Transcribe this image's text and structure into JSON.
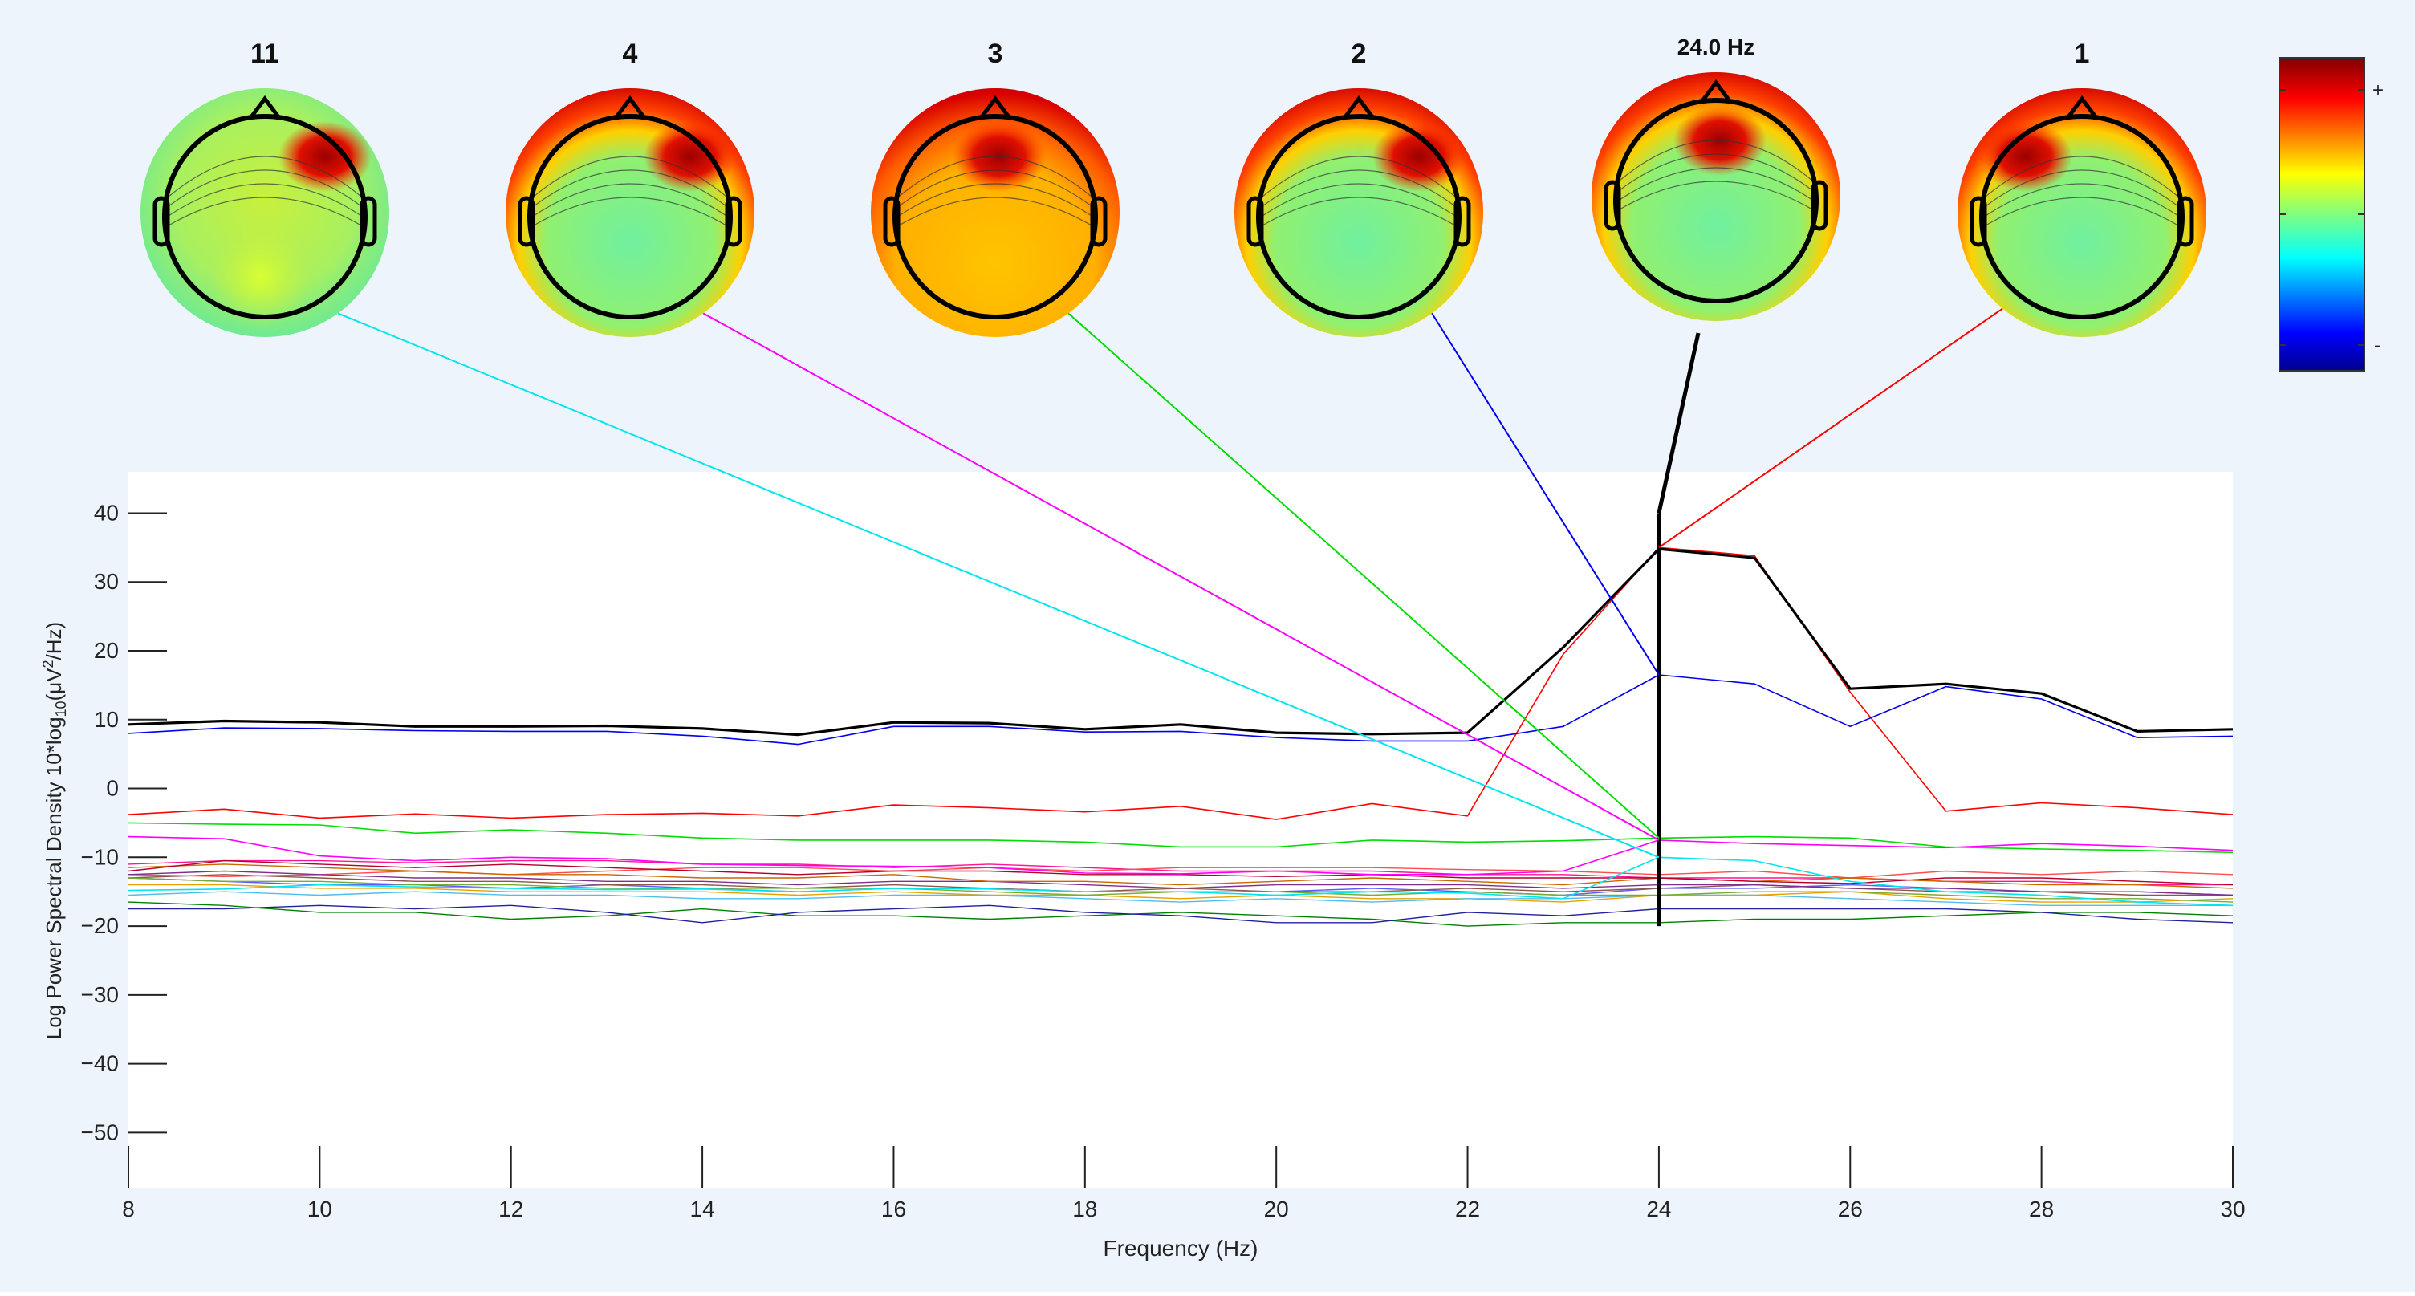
{
  "colorbar": {
    "plus_label": "+",
    "minus_label": "-"
  },
  "colors": {
    "figure_bg": "#eef4fc",
    "axes_bg": "#ffffff",
    "envelope": "#000000",
    "marker": "#000000"
  },
  "topomaps": [
    {
      "title": "11",
      "scalp": "flat",
      "hot_spot": "right-frontal",
      "line_color": "#00e5ee",
      "target": {
        "x": 24,
        "y": -10.0
      }
    },
    {
      "title": "4",
      "scalp": "frontal-red",
      "hot_spot": "right-frontal",
      "line_color": "#ff00ff",
      "target": {
        "x": 24,
        "y": -7.5
      }
    },
    {
      "title": "3",
      "scalp": "red-yellow",
      "hot_spot": "frontal",
      "line_color": "#00dd00",
      "target": {
        "x": 24,
        "y": -7.2
      }
    },
    {
      "title": "2",
      "scalp": "frontal-red",
      "hot_spot": "right-frontal",
      "line_color": "#0000ee",
      "target": {
        "x": 24,
        "y": 16.5
      }
    },
    {
      "title": "24.0 Hz",
      "scalp": "frontal-red",
      "hot_spot": "frontal",
      "line_color": "#000000",
      "target": {
        "x": 24,
        "y": 40
      }
    },
    {
      "title": "1",
      "scalp": "frontal-red",
      "hot_spot": "left-frontal",
      "line_color": "#ff0000",
      "target": {
        "x": 24,
        "y": 35
      }
    }
  ],
  "chart_data": {
    "type": "line",
    "xlabel": "Frequency (Hz)",
    "ylabel_prefix": "Log Power Spectral Density 10*log",
    "ylabel_sub1": "10",
    "ylabel_mid": "(μV",
    "ylabel_sup": "2",
    "ylabel_suffix": "/Hz)",
    "xlim": [
      8,
      30
    ],
    "ylim": [
      -58,
      46
    ],
    "xticks": [
      8,
      10,
      12,
      14,
      16,
      18,
      20,
      22,
      24,
      26,
      28,
      30
    ],
    "yticks": [
      -50,
      -40,
      -30,
      -20,
      -10,
      0,
      10,
      20,
      30,
      40
    ],
    "ytick_labels": [
      "−50",
      "−40",
      "−30",
      "−20",
      "−10",
      "0",
      "10",
      "20",
      "30",
      "40"
    ],
    "marker_frequency": 24,
    "marker_range": [
      -20,
      40
    ],
    "x": [
      8,
      9,
      10,
      11,
      12,
      13,
      14,
      15,
      16,
      17,
      18,
      19,
      20,
      21,
      22,
      23,
      24,
      25,
      26,
      27,
      28,
      29,
      30
    ],
    "series": [
      {
        "color": "#000000",
        "width": 3.2,
        "values": [
          9.3,
          9.8,
          9.6,
          9.0,
          9.0,
          9.1,
          8.7,
          7.8,
          9.6,
          9.5,
          8.6,
          9.3,
          8.1,
          7.9,
          8.1,
          20.5,
          34.8,
          33.5,
          14.5,
          15.2,
          13.8,
          8.3,
          8.6
        ]
      },
      {
        "color": "#0000ee",
        "width": 1.6,
        "values": [
          8.0,
          8.8,
          8.7,
          8.4,
          8.3,
          8.3,
          7.6,
          6.4,
          9.0,
          9.0,
          8.2,
          8.3,
          7.4,
          6.9,
          6.9,
          9.0,
          16.5,
          15.2,
          9.0,
          14.8,
          13.0,
          7.4,
          7.6
        ]
      },
      {
        "color": "#ff0000",
        "width": 1.6,
        "values": [
          -3.8,
          -3.0,
          -4.3,
          -3.7,
          -4.3,
          -3.8,
          -3.6,
          -4.0,
          -2.4,
          -2.8,
          -3.4,
          -2.6,
          -4.5,
          -2.2,
          -4.0,
          19.5,
          35.0,
          33.8,
          14.0,
          -3.3,
          -2.1,
          -2.8,
          -3.8
        ]
      },
      {
        "color": "#00dd00",
        "width": 1.6,
        "values": [
          -5.0,
          -5.2,
          -5.3,
          -6.5,
          -6.0,
          -6.5,
          -7.2,
          -7.5,
          -7.5,
          -7.5,
          -7.8,
          -8.5,
          -8.5,
          -7.5,
          -7.8,
          -7.6,
          -7.2,
          -7.0,
          -7.2,
          -8.5,
          -8.8,
          -9.0,
          -9.3
        ]
      },
      {
        "color": "#ff00ff",
        "width": 1.6,
        "values": [
          -7.0,
          -7.3,
          -9.8,
          -10.5,
          -10.0,
          -10.2,
          -11.0,
          -11.2,
          -11.3,
          -11.5,
          -12.3,
          -12.4,
          -12.0,
          -12.5,
          -12.5,
          -12.0,
          -7.5,
          -8.0,
          -8.3,
          -8.6,
          -8.0,
          -8.4,
          -9.0
        ]
      },
      {
        "color": "#00e5ee",
        "width": 1.6,
        "values": [
          -14.8,
          -14.6,
          -14.0,
          -14.3,
          -14.5,
          -14.7,
          -14.6,
          -15.0,
          -14.5,
          -14.6,
          -15.0,
          -15.0,
          -15.5,
          -15.0,
          -15.2,
          -16.0,
          -10.0,
          -10.5,
          -13.5,
          -15.0,
          -15.5,
          -16.5,
          -17.0
        ]
      },
      {
        "color": "#b3002d",
        "width": 1.4,
        "values": [
          -12.0,
          -10.5,
          -11.0,
          -11.5,
          -11.0,
          -11.5,
          -12.0,
          -12.5,
          -12.0,
          -12.0,
          -12.5,
          -12.5,
          -12.8,
          -12.5,
          -13.0,
          -13.0,
          -13.0,
          -13.5,
          -13.8,
          -13.0,
          -13.0,
          -13.5,
          -14.0
        ]
      },
      {
        "color": "#cc6600",
        "width": 1.4,
        "values": [
          -11.5,
          -11.0,
          -11.5,
          -12.0,
          -12.5,
          -12.5,
          -13.0,
          -13.0,
          -12.5,
          -13.5,
          -13.5,
          -14.0,
          -13.5,
          -13.0,
          -13.5,
          -14.0,
          -13.0,
          -13.5,
          -13.0,
          -13.5,
          -14.0,
          -14.0,
          -14.5
        ]
      },
      {
        "color": "#7e2f8e",
        "width": 1.4,
        "values": [
          -12.5,
          -12.0,
          -12.5,
          -13.0,
          -13.0,
          -13.5,
          -13.5,
          -14.0,
          -13.5,
          -13.5,
          -14.0,
          -14.5,
          -14.0,
          -14.0,
          -14.0,
          -14.5,
          -14.0,
          -14.0,
          -14.5,
          -14.5,
          -15.0,
          -15.0,
          -15.5
        ]
      },
      {
        "color": "#77ac30",
        "width": 1.4,
        "values": [
          -13.0,
          -13.5,
          -13.5,
          -14.0,
          -14.0,
          -14.5,
          -14.5,
          -14.5,
          -14.5,
          -15.0,
          -15.5,
          -15.0,
          -15.0,
          -15.5,
          -15.0,
          -15.5,
          -15.5,
          -15.0,
          -15.0,
          -15.5,
          -16.0,
          -16.0,
          -16.5
        ]
      },
      {
        "color": "#4dbeee",
        "width": 1.4,
        "values": [
          -15.5,
          -15.0,
          -15.5,
          -15.0,
          -15.5,
          -15.5,
          -16.0,
          -16.0,
          -15.5,
          -15.5,
          -16.0,
          -16.5,
          -16.0,
          -16.5,
          -16.0,
          -16.0,
          -15.5,
          -15.5,
          -16.0,
          -16.5,
          -17.0,
          -17.0,
          -17.0
        ]
      },
      {
        "color": "#ff4d4d",
        "width": 1.4,
        "values": [
          -12.5,
          -12.8,
          -12.5,
          -12.0,
          -12.5,
          -12.0,
          -11.5,
          -11.5,
          -12.0,
          -11.5,
          -12.0,
          -11.5,
          -11.5,
          -11.5,
          -11.8,
          -12.0,
          -12.5,
          -12.0,
          -13.0,
          -12.0,
          -12.5,
          -12.0,
          -12.5
        ]
      },
      {
        "color": "#8c564b",
        "width": 1.4,
        "values": [
          -13.0,
          -12.5,
          -13.0,
          -13.5,
          -13.5,
          -14.0,
          -14.0,
          -14.5,
          -14.0,
          -14.5,
          -15.0,
          -14.5,
          -15.0,
          -15.0,
          -14.5,
          -15.0,
          -14.5,
          -14.0,
          -14.5,
          -15.0,
          -15.0,
          -15.5,
          -15.5
        ]
      },
      {
        "color": "#e6a300",
        "width": 1.4,
        "values": [
          -14.0,
          -14.0,
          -14.5,
          -14.5,
          -15.0,
          -15.0,
          -15.0,
          -15.5,
          -15.0,
          -15.5,
          -15.5,
          -16.0,
          -15.5,
          -16.0,
          -16.0,
          -16.5,
          -15.5,
          -15.5,
          -15.0,
          -16.0,
          -16.5,
          -16.5,
          -16.0
        ]
      },
      {
        "color": "#2020a0",
        "width": 1.4,
        "values": [
          -17.5,
          -17.5,
          -17.0,
          -17.5,
          -17.0,
          -18.0,
          -19.5,
          -18.0,
          -17.5,
          -17.0,
          -18.0,
          -18.5,
          -19.5,
          -19.5,
          -18.0,
          -18.5,
          -17.5,
          -17.5,
          -17.5,
          -17.5,
          -18.0,
          -19.0,
          -19.5
        ]
      },
      {
        "color": "#008000",
        "width": 1.4,
        "values": [
          -16.5,
          -17.0,
          -18.0,
          -18.0,
          -19.0,
          -18.5,
          -17.5,
          -18.5,
          -18.5,
          -19.0,
          -18.5,
          -18.0,
          -18.5,
          -19.0,
          -20.0,
          -19.5,
          -19.5,
          -19.0,
          -19.0,
          -18.5,
          -18.0,
          -18.0,
          -18.5
        ]
      },
      {
        "color": "#5a5aff",
        "width": 1.4,
        "values": [
          -13.0,
          -13.5,
          -14.0,
          -14.0,
          -14.5,
          -14.0,
          -14.5,
          -15.0,
          -14.5,
          -14.5,
          -15.0,
          -15.0,
          -15.0,
          -14.5,
          -15.0,
          -15.5,
          -14.5,
          -14.5,
          -14.0,
          -14.5,
          -15.0,
          -15.0,
          -15.5
        ]
      },
      {
        "color": "#ff1493",
        "width": 1.4,
        "values": [
          -11.0,
          -10.5,
          -10.5,
          -10.8,
          -10.5,
          -10.5,
          -11.0,
          -11.0,
          -11.5,
          -11.0,
          -11.5,
          -12.0,
          -12.0,
          -12.0,
          -12.5,
          -12.5,
          -13.0,
          -13.0,
          -13.0,
          -13.5,
          -13.5,
          -14.0,
          -14.0
        ]
      }
    ]
  }
}
